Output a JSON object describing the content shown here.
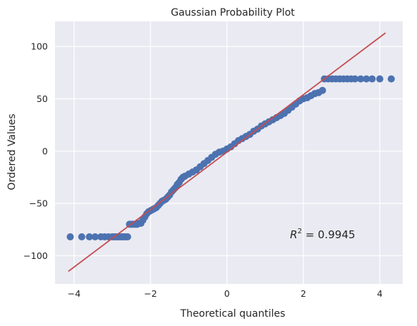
{
  "colors": {
    "plot_background": "#eaeaf2",
    "grid": "#ffffff",
    "points": "#4c72b0",
    "fit_line": "#c44e52"
  },
  "chart_data": {
    "type": "scatter",
    "title": "Gaussian Probability Plot",
    "xlabel": "Theoretical quantiles",
    "ylabel": "Ordered Values",
    "xlim": [
      -4.5,
      4.6
    ],
    "ylim": [
      -127,
      124
    ],
    "xticks": [
      -4,
      -2,
      0,
      2,
      4
    ],
    "xtick_labels": [
      "−4",
      "−2",
      "0",
      "2",
      "4"
    ],
    "yticks": [
      -100,
      -50,
      0,
      50,
      100
    ],
    "ytick_labels": [
      "−100",
      "−50",
      "0",
      "50",
      "100"
    ],
    "grid": true,
    "fit_line": {
      "x": [
        -4.15,
        4.15
      ],
      "y": [
        -115,
        113
      ]
    },
    "annotation": {
      "text_base": "R",
      "text_exp": "2",
      "text_rest": " = 0.9945",
      "x": 1.65,
      "y": -80
    },
    "points": [
      [
        -4.1,
        -82
      ],
      [
        -3.8,
        -82
      ],
      [
        -3.6,
        -82
      ],
      [
        -3.45,
        -82
      ],
      [
        -3.3,
        -82
      ],
      [
        -3.2,
        -82
      ],
      [
        -3.1,
        -82
      ],
      [
        -3.0,
        -82
      ],
      [
        -2.95,
        -82
      ],
      [
        -2.9,
        -82
      ],
      [
        -2.85,
        -82
      ],
      [
        -2.8,
        -82
      ],
      [
        -2.75,
        -82
      ],
      [
        -2.7,
        -82
      ],
      [
        -2.65,
        -82
      ],
      [
        -2.6,
        -82
      ],
      [
        -2.55,
        -70
      ],
      [
        -2.5,
        -70
      ],
      [
        -2.45,
        -70
      ],
      [
        -2.4,
        -70
      ],
      [
        -2.35,
        -70
      ],
      [
        -2.3,
        -69
      ],
      [
        -2.25,
        -69
      ],
      [
        -2.2,
        -66
      ],
      [
        -2.15,
        -63
      ],
      [
        -2.1,
        -60
      ],
      [
        -2.05,
        -58
      ],
      [
        -2.0,
        -57
      ],
      [
        -1.95,
        -56
      ],
      [
        -1.9,
        -55
      ],
      [
        -1.85,
        -54
      ],
      [
        -1.8,
        -52
      ],
      [
        -1.75,
        -50
      ],
      [
        -1.7,
        -48
      ],
      [
        -1.65,
        -47
      ],
      [
        -1.6,
        -46
      ],
      [
        -1.55,
        -44
      ],
      [
        -1.5,
        -42
      ],
      [
        -1.45,
        -39
      ],
      [
        -1.4,
        -37
      ],
      [
        -1.35,
        -35
      ],
      [
        -1.3,
        -32
      ],
      [
        -1.25,
        -30
      ],
      [
        -1.2,
        -27
      ],
      [
        -1.15,
        -25
      ],
      [
        -1.1,
        -24
      ],
      [
        -1.0,
        -22
      ],
      [
        -0.9,
        -20
      ],
      [
        -0.8,
        -18
      ],
      [
        -0.7,
        -15
      ],
      [
        -0.6,
        -12
      ],
      [
        -0.5,
        -9
      ],
      [
        -0.4,
        -6
      ],
      [
        -0.3,
        -3
      ],
      [
        -0.2,
        -1
      ],
      [
        -0.1,
        0
      ],
      [
        0.0,
        2
      ],
      [
        0.1,
        4
      ],
      [
        0.2,
        7
      ],
      [
        0.3,
        10
      ],
      [
        0.4,
        12
      ],
      [
        0.5,
        14
      ],
      [
        0.6,
        16
      ],
      [
        0.7,
        19
      ],
      [
        0.8,
        21
      ],
      [
        0.9,
        24
      ],
      [
        1.0,
        26
      ],
      [
        1.1,
        28
      ],
      [
        1.2,
        30
      ],
      [
        1.3,
        32
      ],
      [
        1.4,
        34
      ],
      [
        1.5,
        36
      ],
      [
        1.6,
        39
      ],
      [
        1.7,
        42
      ],
      [
        1.8,
        45
      ],
      [
        1.9,
        48
      ],
      [
        2.0,
        50
      ],
      [
        2.1,
        51
      ],
      [
        2.2,
        53
      ],
      [
        2.3,
        55
      ],
      [
        2.4,
        56
      ],
      [
        2.5,
        58
      ],
      [
        2.55,
        69
      ],
      [
        2.65,
        69
      ],
      [
        2.75,
        69
      ],
      [
        2.85,
        69
      ],
      [
        2.95,
        69
      ],
      [
        3.05,
        69
      ],
      [
        3.15,
        69
      ],
      [
        3.25,
        69
      ],
      [
        3.35,
        69
      ],
      [
        3.5,
        69
      ],
      [
        3.65,
        69
      ],
      [
        3.8,
        69
      ],
      [
        4.0,
        69
      ],
      [
        4.3,
        69
      ]
    ]
  }
}
